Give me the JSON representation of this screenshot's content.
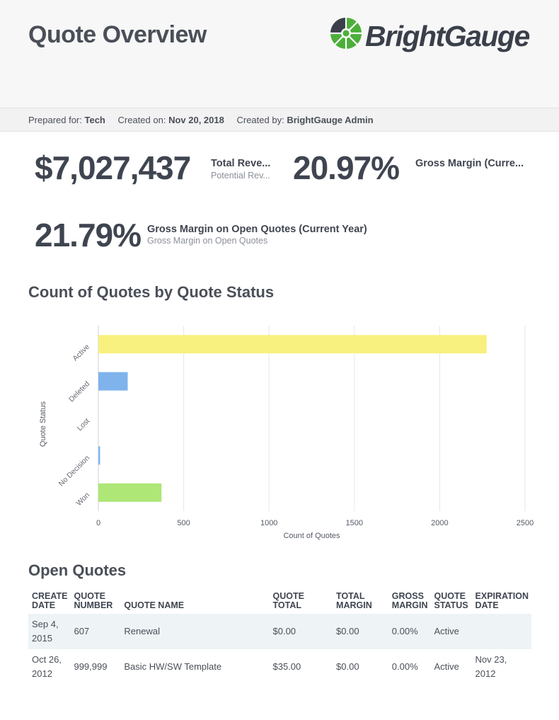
{
  "header": {
    "title": "Quote Overview",
    "logo": {
      "name": "BrightGauge",
      "icon": "brightgauge-logo-icon",
      "colors": {
        "green": "#4caf3a",
        "dark": "#3a3f4a"
      }
    }
  },
  "meta": {
    "prepared_for_label": "Prepared for:",
    "prepared_for": "Tech",
    "created_on_label": "Created on:",
    "created_on": "Nov 20, 2018",
    "created_by_label": "Created by:",
    "created_by": "BrightGauge Admin"
  },
  "kpis": [
    {
      "value": "$7,027,437",
      "title": "Total Reve...",
      "subtitle": "Potential Rev..."
    },
    {
      "value": "20.97%",
      "title": "Gross Margin (Curre...",
      "subtitle": ""
    },
    {
      "value": "21.79%",
      "title": "Gross Margin on Open Quotes (Current Year)",
      "subtitle": "Gross Margin on Open Quotes"
    }
  ],
  "chart_section": {
    "title": "Count of Quotes by Quote Status"
  },
  "chart_data": {
    "type": "bar",
    "orientation": "horizontal",
    "categories": [
      "Active",
      "Deleted",
      "Lost",
      "No Decision",
      "Won"
    ],
    "values": [
      2275,
      172,
      0,
      10,
      370
    ],
    "colors": [
      "#f8f07e",
      "#7fb3ec",
      "#7fb3ec",
      "#7fb3ec",
      "#aee776"
    ],
    "xlabel": "Count of Quotes",
    "ylabel": "Quote Status",
    "xlim": [
      0,
      2500
    ],
    "xticks": [
      0,
      500,
      1000,
      1500,
      2000,
      2500
    ],
    "grid": true
  },
  "table_section": {
    "title": "Open Quotes"
  },
  "table": {
    "columns": [
      [
        "CREATE",
        "DATE"
      ],
      [
        "QUOTE",
        "NUMBER"
      ],
      [
        "QUOTE NAME",
        ""
      ],
      [
        "QUOTE",
        "TOTAL"
      ],
      [
        "TOTAL",
        "MARGIN"
      ],
      [
        "GROSS",
        "MARGIN"
      ],
      [
        "QUOTE",
        "STATUS"
      ],
      [
        "EXPIRATION",
        "DATE"
      ]
    ],
    "rows": [
      [
        [
          "Sep 4,",
          "2015"
        ],
        [
          "607",
          ""
        ],
        [
          "Renewal",
          ""
        ],
        [
          "$0.00",
          ""
        ],
        [
          "$0.00",
          ""
        ],
        [
          "0.00%",
          ""
        ],
        [
          "Active",
          ""
        ],
        [
          "",
          ""
        ]
      ],
      [
        [
          "Oct 26,",
          "2012"
        ],
        [
          "999,999",
          ""
        ],
        [
          "Basic HW/SW Template",
          ""
        ],
        [
          "$35.00",
          ""
        ],
        [
          "$0.00",
          ""
        ],
        [
          "0.00%",
          ""
        ],
        [
          "Active",
          ""
        ],
        [
          "Nov 23,",
          "2012"
        ]
      ]
    ]
  }
}
